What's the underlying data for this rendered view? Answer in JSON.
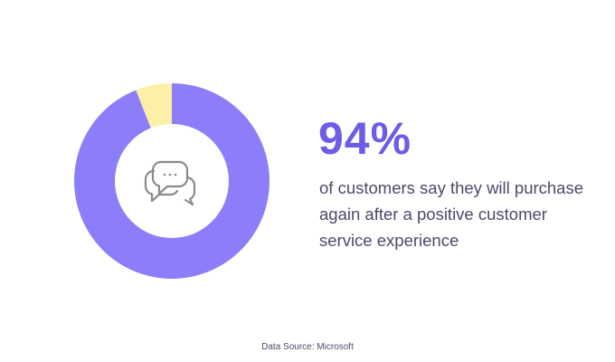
{
  "colors": {
    "primary": "#8b7ef8",
    "secondary": "#fdf0a6",
    "highlight_text": "#6c5ce7",
    "body_text": "#4a4a6a",
    "icon": "#8a8a8a"
  },
  "center_icon": "chat-bubbles-icon",
  "chart_data": {
    "type": "pie",
    "donut": true,
    "slices": [
      {
        "value": 94
      },
      {
        "value": 6
      }
    ],
    "title": "",
    "legend": "none"
  },
  "headline": {
    "value": "94%",
    "description": "of customers say they will purchase again after a positive customer service experience"
  },
  "source": "Data Source: Microsoft"
}
